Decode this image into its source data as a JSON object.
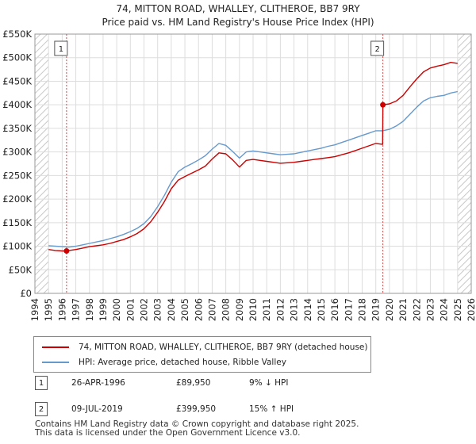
{
  "chart_data": {
    "type": "line",
    "title": "74, MITTON ROAD, WHALLEY, CLITHEROE, BB7 9RY",
    "subtitle": "Price paid vs. HM Land Registry's House Price Index (HPI)",
    "xlabel": "",
    "ylabel": "",
    "xlim": [
      1994,
      2026
    ],
    "ylim": [
      0,
      550000
    ],
    "y_ticks": [
      0,
      50000,
      100000,
      150000,
      200000,
      250000,
      300000,
      350000,
      400000,
      450000,
      500000,
      550000
    ],
    "y_tick_labels": [
      "£0",
      "£50K",
      "£100K",
      "£150K",
      "£200K",
      "£250K",
      "£300K",
      "£350K",
      "£400K",
      "£450K",
      "£500K",
      "£550K"
    ],
    "x_ticks": [
      1994,
      1995,
      1996,
      1997,
      1998,
      1999,
      2000,
      2001,
      2002,
      2003,
      2004,
      2005,
      2006,
      2007,
      2008,
      2009,
      2010,
      2011,
      2012,
      2013,
      2014,
      2015,
      2016,
      2017,
      2018,
      2019,
      2020,
      2021,
      2022,
      2023,
      2024,
      2025,
      2026
    ],
    "x_tick_labels": [
      "1994",
      "1995",
      "1996",
      "1997",
      "1998",
      "1999",
      "2000",
      "2001",
      "2002",
      "2003",
      "2004",
      "2005",
      "2006",
      "2007",
      "2008",
      "2009",
      "2010",
      "2011",
      "2012",
      "2013",
      "2014",
      "2015",
      "2016",
      "2017",
      "2018",
      "2019",
      "2020",
      "2021",
      "2022",
      "2023",
      "2024",
      "2025",
      "2026"
    ],
    "grid": true,
    "series": [
      {
        "name": "74, MITTON ROAD, WHALLEY, CLITHEROE, BB7 9RY (detached house)",
        "color": "#cc0000",
        "x": [
          1995.0,
          1995.5,
          1996.0,
          1996.32,
          1996.5,
          1997.0,
          1997.5,
          1998.0,
          1998.5,
          1999.0,
          1999.5,
          2000.0,
          2000.5,
          2001.0,
          2001.5,
          2002.0,
          2002.5,
          2003.0,
          2003.5,
          2004.0,
          2004.5,
          2005.0,
          2005.5,
          2006.0,
          2006.5,
          2007.0,
          2007.5,
          2008.0,
          2008.5,
          2009.0,
          2009.5,
          2010.0,
          2010.5,
          2011.0,
          2011.5,
          2012.0,
          2012.5,
          2013.0,
          2013.5,
          2014.0,
          2014.5,
          2015.0,
          2015.5,
          2016.0,
          2016.5,
          2017.0,
          2017.5,
          2018.0,
          2018.5,
          2019.0,
          2019.5,
          2019.52,
          2020.0,
          2020.5,
          2021.0,
          2021.5,
          2022.0,
          2022.5,
          2023.0,
          2023.5,
          2024.0,
          2024.5,
          2025.0
        ],
        "values": [
          93000,
          91000,
          90000,
          89950,
          91000,
          93000,
          96000,
          99000,
          101000,
          103000,
          106000,
          110000,
          114000,
          120000,
          127000,
          137000,
          152000,
          172000,
          195000,
          222000,
          240000,
          248000,
          255000,
          262000,
          270000,
          285000,
          298000,
          296000,
          283000,
          268000,
          282000,
          284000,
          282000,
          280000,
          278000,
          276000,
          277000,
          278000,
          280000,
          282000,
          284000,
          286000,
          288000,
          290000,
          294000,
          298000,
          303000,
          308000,
          313000,
          318000,
          316000,
          399950,
          402000,
          408000,
          420000,
          438000,
          455000,
          470000,
          478000,
          482000,
          485000,
          490000,
          488000
        ]
      },
      {
        "name": "HPI: Average price, detached house, Ribble Valley",
        "color": "#6699cc",
        "x": [
          1995.0,
          1995.5,
          1996.0,
          1996.5,
          1997.0,
          1997.5,
          1998.0,
          1998.5,
          1999.0,
          1999.5,
          2000.0,
          2000.5,
          2001.0,
          2001.5,
          2002.0,
          2002.5,
          2003.0,
          2003.5,
          2004.0,
          2004.5,
          2005.0,
          2005.5,
          2006.0,
          2006.5,
          2007.0,
          2007.5,
          2008.0,
          2008.5,
          2009.0,
          2009.5,
          2010.0,
          2010.5,
          2011.0,
          2011.5,
          2012.0,
          2012.5,
          2013.0,
          2013.5,
          2014.0,
          2014.5,
          2015.0,
          2015.5,
          2016.0,
          2016.5,
          2017.0,
          2017.5,
          2018.0,
          2018.5,
          2019.0,
          2019.5,
          2020.0,
          2020.5,
          2021.0,
          2021.5,
          2022.0,
          2022.5,
          2023.0,
          2023.5,
          2024.0,
          2024.5,
          2025.0
        ],
        "values": [
          101000,
          100000,
          99000,
          98000,
          100000,
          103000,
          106000,
          109000,
          112000,
          116000,
          120000,
          125000,
          131000,
          138000,
          148000,
          163000,
          184000,
          208000,
          236000,
          258000,
          268000,
          275000,
          283000,
          292000,
          306000,
          318000,
          314000,
          301000,
          287000,
          300000,
          302000,
          300000,
          298000,
          296000,
          294000,
          295000,
          296000,
          299000,
          302000,
          305000,
          308000,
          312000,
          315000,
          320000,
          325000,
          330000,
          335000,
          340000,
          345000,
          345000,
          348000,
          355000,
          365000,
          380000,
          395000,
          408000,
          415000,
          418000,
          420000,
          425000,
          428000
        ]
      }
    ],
    "annotations": [
      {
        "label": "1",
        "x": 1996.32,
        "y": 89950
      },
      {
        "label": "2",
        "x": 2019.52,
        "y": 399950
      }
    ],
    "hatched_ranges": [
      [
        1994,
        1995
      ],
      [
        2025,
        2026
      ]
    ]
  },
  "legend": {
    "items": [
      {
        "label": "74, MITTON ROAD, WHALLEY, CLITHEROE, BB7 9RY (detached house)",
        "color": "#cc0000"
      },
      {
        "label": "HPI: Average price, detached house, Ribble Valley",
        "color": "#6699cc"
      }
    ]
  },
  "sales": [
    {
      "num": "1",
      "date": "26-APR-1996",
      "price": "£89,950",
      "hpi": "9% ↓ HPI"
    },
    {
      "num": "2",
      "date": "09-JUL-2019",
      "price": "£399,950",
      "hpi": "15% ↑ HPI"
    }
  ],
  "footer": {
    "line1": "Contains HM Land Registry data © Crown copyright and database right 2025.",
    "line2": "This data is licensed under the Open Government Licence v3.0."
  }
}
